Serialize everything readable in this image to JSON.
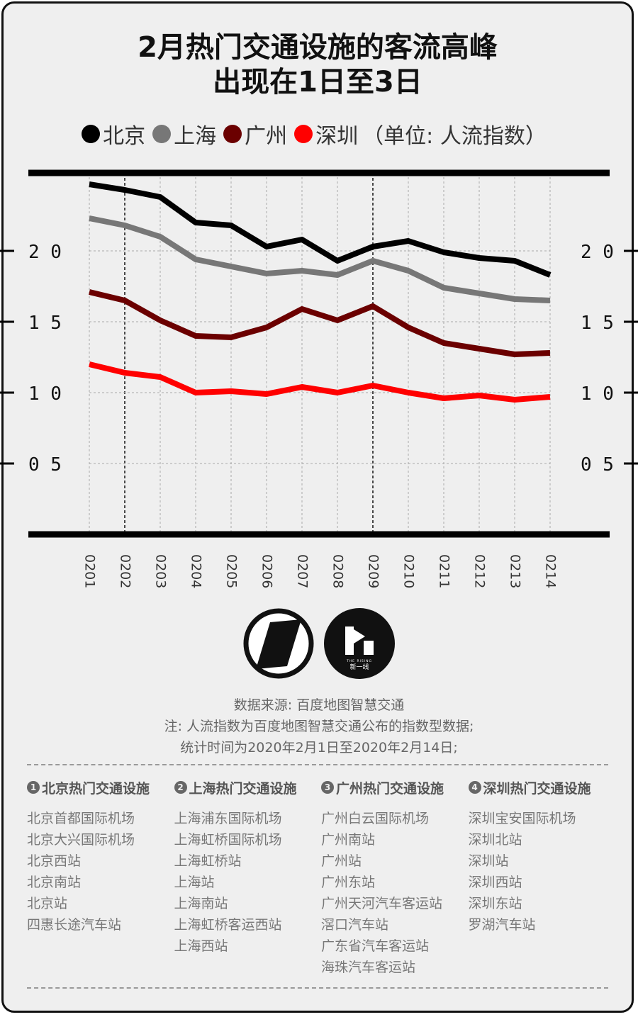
{
  "title_line1": "2月热门交通设施的客流高峰",
  "title_line2": "出现在1日至3日",
  "legend": {
    "unit_note": "（单位: 人流指数）"
  },
  "chart_data": {
    "type": "line",
    "categories": [
      "0201",
      "0202",
      "0203",
      "0204",
      "0205",
      "0206",
      "0207",
      "0208",
      "0209",
      "0210",
      "0211",
      "0212",
      "0213",
      "0214"
    ],
    "series": [
      {
        "name": "北京",
        "color": "#000000",
        "values": [
          2.47,
          2.43,
          2.38,
          2.2,
          2.18,
          2.03,
          2.08,
          1.93,
          2.03,
          2.07,
          1.99,
          1.95,
          1.93,
          1.83
        ]
      },
      {
        "name": "上海",
        "color": "#777777",
        "values": [
          2.23,
          2.18,
          2.1,
          1.94,
          1.89,
          1.84,
          1.86,
          1.83,
          1.93,
          1.86,
          1.74,
          1.7,
          1.66,
          1.65
        ]
      },
      {
        "name": "广州",
        "color": "#6b0000",
        "values": [
          1.71,
          1.65,
          1.51,
          1.4,
          1.39,
          1.46,
          1.59,
          1.51,
          1.61,
          1.46,
          1.35,
          1.31,
          1.27,
          1.28
        ]
      },
      {
        "name": "深圳",
        "color": "#ff0000",
        "values": [
          1.2,
          1.14,
          1.11,
          1.0,
          1.01,
          0.99,
          1.04,
          1.0,
          1.05,
          1.0,
          0.96,
          0.98,
          0.95,
          0.97
        ]
      }
    ],
    "yticks": [
      "2 0",
      "1 5",
      "1 0",
      "0 5"
    ],
    "ytick_values": [
      2.0,
      1.5,
      1.0,
      0.5
    ],
    "ylim": [
      0,
      2.55
    ],
    "grid": true,
    "highlight_dashed_categories": [
      "0202",
      "0209"
    ]
  },
  "logos": {
    "logo2_text": "新一线",
    "logo2_small": "THE RISING"
  },
  "notes": {
    "line1": "数据来源: 百度地图智慧交通",
    "line2": "注: 人流指数为百度地图智慧交通公布的指数型数据;",
    "line3": "统计时间为2020年2月1日至2020年2月14日;"
  },
  "columns": [
    {
      "num": "1",
      "title": "北京热门交通设施",
      "items": [
        "北京首都国际机场",
        "北京大兴国际机场",
        "北京西站",
        "北京南站",
        "北京站",
        "四惠长途汽车站"
      ]
    },
    {
      "num": "2",
      "title": "上海热门交通设施",
      "items": [
        "上海浦东国际机场",
        "上海虹桥国际机场",
        "上海虹桥站",
        "上海站",
        "上海南站",
        "上海虹桥客运西站",
        "上海西站"
      ]
    },
    {
      "num": "3",
      "title": "广州热门交通设施",
      "items": [
        "广州白云国际机场",
        "广州南站",
        "广州站",
        "广州东站",
        "广州天河汽车客运站",
        "滘口汽车站",
        "广东省汽车客运站",
        "海珠汽车客运站"
      ]
    },
    {
      "num": "4",
      "title": "深圳热门交通设施",
      "items": [
        "深圳宝安国际机场",
        "深圳北站",
        "深圳站",
        "深圳西站",
        "深圳东站",
        "罗湖汽车站"
      ]
    }
  ]
}
